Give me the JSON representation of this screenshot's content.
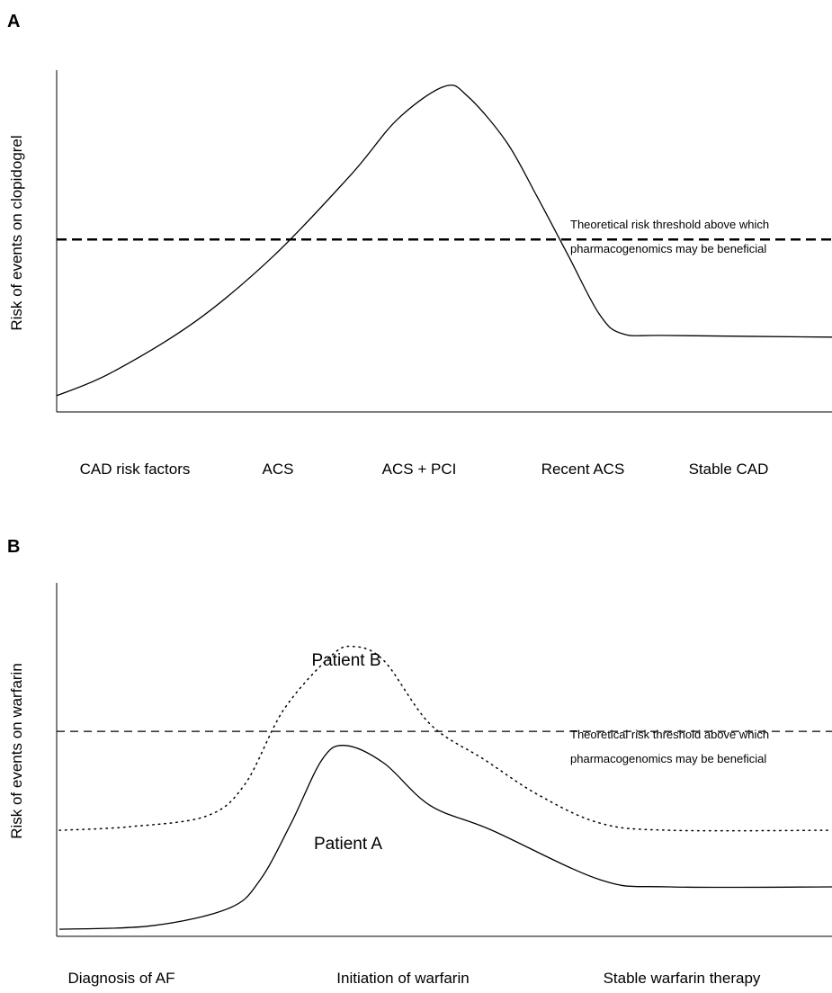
{
  "chart_data": [
    {
      "panel_label": "A",
      "type": "line",
      "title": "",
      "xlabel": "",
      "ylabel": "Risk of events on clopidogrel",
      "categories": [
        "CAD risk factors",
        "ACS",
        "ACS + PCI",
        "Recent ACS",
        "Stable CAD"
      ],
      "threshold": {
        "value": 0.53,
        "label_line1": "Theoretical risk threshold above which",
        "label_line2": "pharmacogenomics may be beneficial",
        "style": "dashed-bold"
      },
      "x": [
        0,
        0.07,
        0.18,
        0.28,
        0.38,
        0.44,
        0.5,
        0.53,
        0.58,
        0.62,
        0.66,
        0.7,
        0.73,
        0.79,
        1.0
      ],
      "series": [
        {
          "style": "solid",
          "values": [
            0.05,
            0.12,
            0.28,
            0.48,
            0.73,
            0.9,
            1.0,
            0.97,
            0.83,
            0.66,
            0.48,
            0.3,
            0.24,
            0.235,
            0.23
          ]
        }
      ],
      "ylim": [
        0,
        1.05
      ],
      "grid": false
    },
    {
      "panel_label": "B",
      "type": "line",
      "title": "",
      "xlabel": "",
      "ylabel": "Risk of events on warfarin",
      "categories": [
        "Diagnosis of AF",
        "Initiation of warfarin",
        "Stable warfarin therapy"
      ],
      "threshold": {
        "value": 0.58,
        "label_line1": "Theoretical risk threshold above which",
        "label_line2": "pharmacogenomics may be beneficial",
        "style": "dashed"
      },
      "series": [
        {
          "name": "Patient A",
          "style": "solid",
          "x": [
            0,
            0.12,
            0.22,
            0.26,
            0.3,
            0.34,
            0.37,
            0.42,
            0.48,
            0.56,
            0.7,
            0.79,
            1.0
          ],
          "values": [
            0.02,
            0.03,
            0.08,
            0.16,
            0.32,
            0.5,
            0.54,
            0.49,
            0.37,
            0.3,
            0.16,
            0.14,
            0.14
          ]
        },
        {
          "name": "Patient B",
          "style": "dotted",
          "x": [
            0,
            0.09,
            0.19,
            0.24,
            0.29,
            0.35,
            0.38,
            0.42,
            0.48,
            0.55,
            0.62,
            0.7,
            0.79,
            1.0
          ],
          "values": [
            0.3,
            0.31,
            0.34,
            0.43,
            0.64,
            0.79,
            0.82,
            0.78,
            0.6,
            0.5,
            0.4,
            0.32,
            0.3,
            0.3
          ]
        }
      ],
      "ylim": [
        0,
        1.0
      ],
      "grid": false
    }
  ]
}
